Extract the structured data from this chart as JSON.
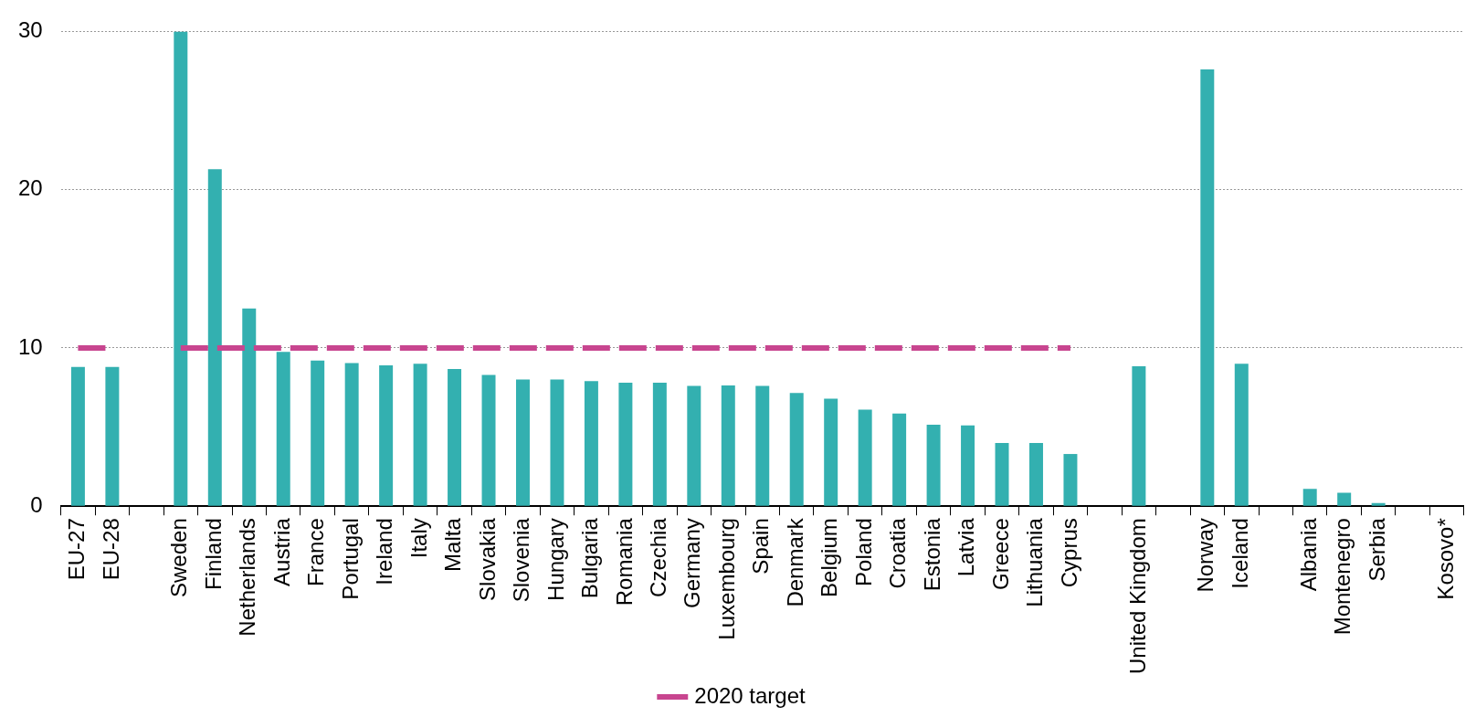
{
  "chart_data": {
    "type": "bar",
    "categories": [
      "EU-27",
      "EU-28",
      null,
      "Sweden",
      "Finland",
      "Netherlands",
      "Austria",
      "France",
      "Portugal",
      "Ireland",
      "Italy",
      "Malta",
      "Slovakia",
      "Slovenia",
      "Hungary",
      "Bulgaria",
      "Romania",
      "Czechia",
      "Germany",
      "Luxembourg",
      "Spain",
      "Denmark",
      "Belgium",
      "Poland",
      "Croatia",
      "Estonia",
      "Latvia",
      "Greece",
      "Lithuania",
      "Cyprus",
      null,
      "United Kingdom",
      null,
      "Norway",
      "Iceland",
      null,
      "Albania",
      "Montenegro",
      "Serbia",
      null,
      "Kosovo*"
    ],
    "series": [
      {
        "color": "#33b0b0",
        "values": [
          8.8,
          8.8,
          null,
          30,
          21.3,
          12.5,
          9.75,
          9.2,
          9.05,
          8.9,
          9.0,
          8.67,
          8.3,
          8.0,
          8.0,
          7.9,
          7.8,
          7.8,
          7.6,
          7.63,
          7.6,
          7.15,
          6.8,
          6.1,
          5.85,
          5.15,
          5.1,
          4.0,
          4.0,
          3.3,
          null,
          8.85,
          null,
          27.6,
          9.0,
          null,
          1.1,
          0.85,
          0.2,
          null,
          null
        ]
      },
      {
        "type": "line",
        "name": "2020 target",
        "color": "#c8458f",
        "line_style": "dashed",
        "marker": "none",
        "values": [
          10,
          10,
          null,
          10,
          10,
          10,
          10,
          10,
          10,
          10,
          10,
          10,
          10,
          10,
          10,
          10,
          10,
          10,
          10,
          10,
          10,
          10,
          10,
          10,
          10,
          10,
          10,
          10,
          10,
          10,
          null,
          null,
          null,
          null,
          null,
          null,
          null,
          null,
          null,
          null,
          null
        ]
      }
    ],
    "ylim": [
      0,
      30
    ],
    "yticks": [
      0,
      10,
      20,
      30
    ],
    "grid": "y",
    "legend": "bottom"
  }
}
